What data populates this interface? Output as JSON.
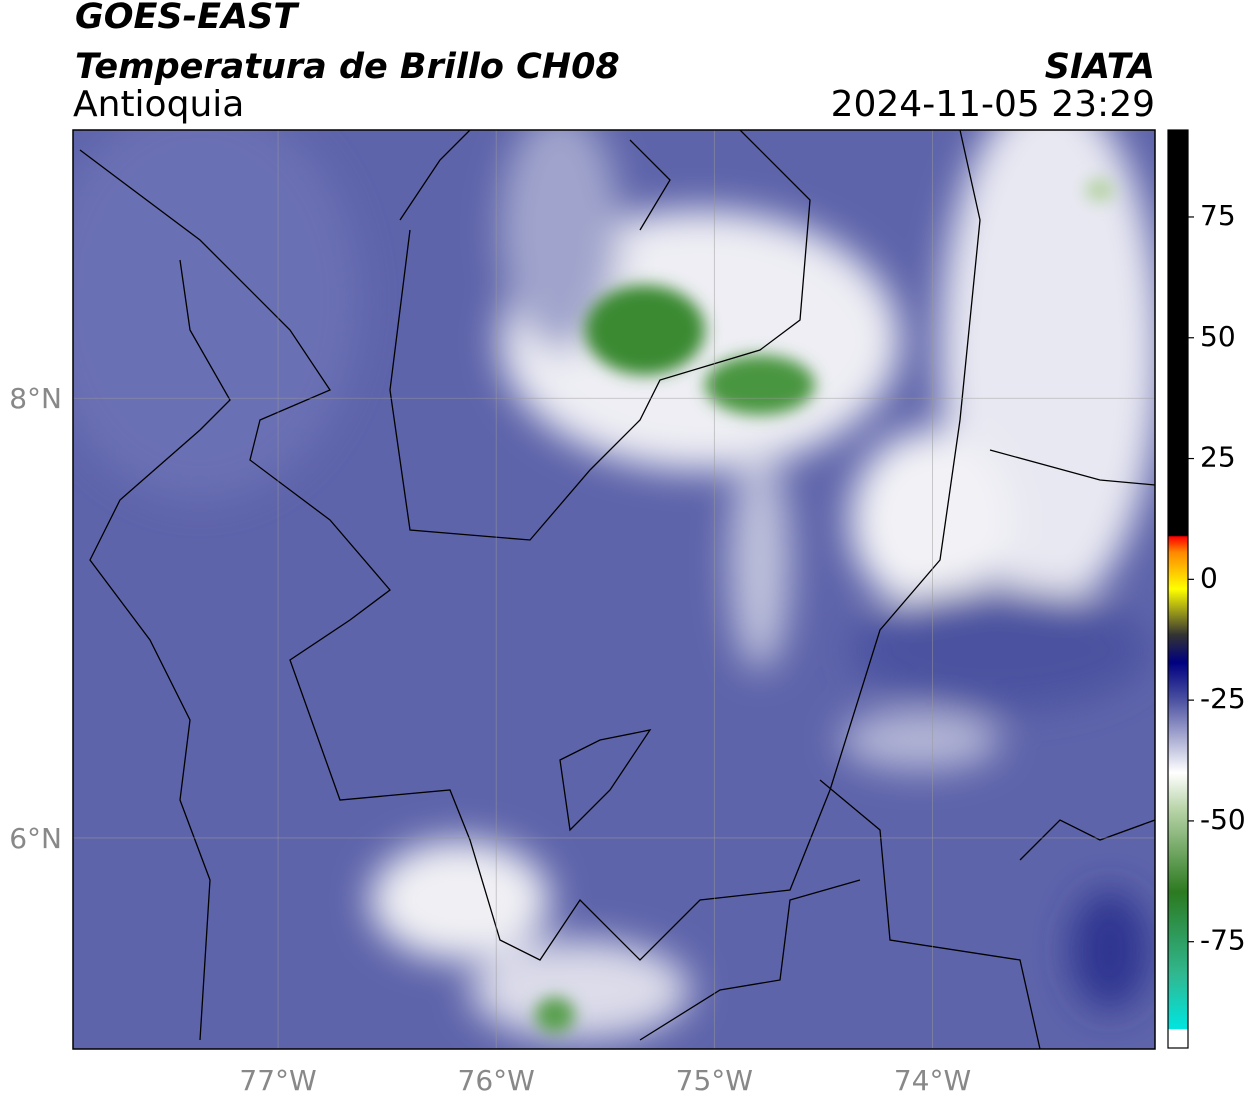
{
  "header": {
    "title": "GOES-EAST",
    "subtitle": "Temperatura de Brillo CH08",
    "region": "Antioquia",
    "source": "SIATA",
    "timestamp": "2024-11-05 23:29"
  },
  "map": {
    "xlim": [
      -77.94,
      -72.98
    ],
    "ylim": [
      5.04,
      9.22
    ],
    "grid": true,
    "xticks": [
      {
        "value": -77,
        "label": "77°W"
      },
      {
        "value": -76,
        "label": "76°W"
      },
      {
        "value": -75,
        "label": "75°W"
      },
      {
        "value": -74,
        "label": "74°W"
      }
    ],
    "yticks": [
      {
        "value": 8,
        "label": "8°N"
      },
      {
        "value": 6,
        "label": "6°N"
      }
    ]
  },
  "colorbar": {
    "clim": [
      -97,
      93
    ],
    "ticks": [
      75,
      50,
      25,
      0,
      -25,
      -50,
      -75
    ]
  }
}
